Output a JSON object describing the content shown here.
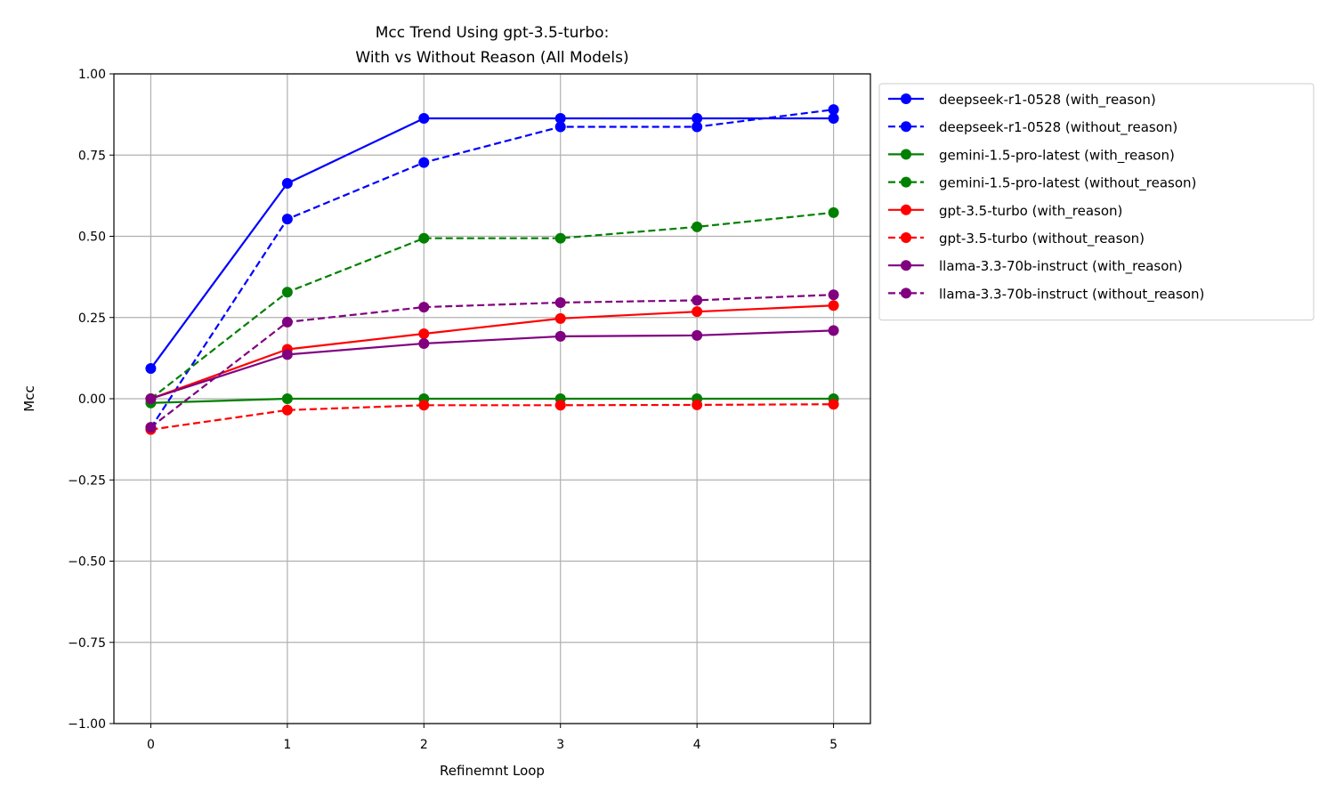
{
  "chart_data": {
    "type": "line",
    "title": "Mcc Trend Using gpt-3.5-turbo:",
    "subtitle": "With vs Without Reason (All Models)",
    "xlabel": "Refinemnt Loop",
    "ylabel": "Mcc",
    "x": [
      0,
      1,
      2,
      3,
      4,
      5
    ],
    "xlim": [
      -0.27,
      5.27
    ],
    "ylim": [
      -1.0,
      1.0
    ],
    "xticks": [
      "0",
      "1",
      "2",
      "3",
      "4",
      "5"
    ],
    "yticks": [
      -1.0,
      -0.75,
      -0.5,
      -0.25,
      0.0,
      0.25,
      0.5,
      0.75,
      1.0
    ],
    "ytick_labels": [
      "−1.00",
      "−0.75",
      "−0.50",
      "−0.25",
      "0.00",
      "0.25",
      "0.50",
      "0.75",
      "1.00"
    ],
    "grid": true,
    "legend_position": "outside-right-top",
    "series": [
      {
        "name": "deepseek-r1-0528 (with_reason)",
        "color": "#0000ff",
        "dashed": false,
        "values": [
          0.093,
          0.663,
          0.863,
          0.863,
          0.863,
          0.863
        ]
      },
      {
        "name": "deepseek-r1-0528 (without_reason)",
        "color": "#0000ff",
        "dashed": true,
        "values": [
          -0.09,
          0.553,
          0.727,
          0.837,
          0.837,
          0.89
        ]
      },
      {
        "name": "gemini-1.5-pro-latest (with_reason)",
        "color": "#008000",
        "dashed": false,
        "values": [
          -0.013,
          0.0,
          0.0,
          0.0,
          0.0,
          0.0
        ]
      },
      {
        "name": "gemini-1.5-pro-latest (without_reason)",
        "color": "#008000",
        "dashed": true,
        "values": [
          0.0,
          0.328,
          0.494,
          0.494,
          0.529,
          0.573
        ]
      },
      {
        "name": "gpt-3.5-turbo (with_reason)",
        "color": "#ff0000",
        "dashed": false,
        "values": [
          0.0,
          0.152,
          0.2,
          0.247,
          0.268,
          0.287
        ]
      },
      {
        "name": "gpt-3.5-turbo (without_reason)",
        "color": "#ff0000",
        "dashed": true,
        "values": [
          -0.095,
          -0.035,
          -0.02,
          -0.02,
          -0.019,
          -0.017
        ]
      },
      {
        "name": "llama-3.3-70b-instruct (with_reason)",
        "color": "#800080",
        "dashed": false,
        "values": [
          0.0,
          0.136,
          0.17,
          0.192,
          0.195,
          0.21
        ]
      },
      {
        "name": "llama-3.3-70b-instruct (without_reason)",
        "color": "#800080",
        "dashed": true,
        "values": [
          -0.088,
          0.236,
          0.282,
          0.296,
          0.303,
          0.32
        ]
      }
    ]
  }
}
